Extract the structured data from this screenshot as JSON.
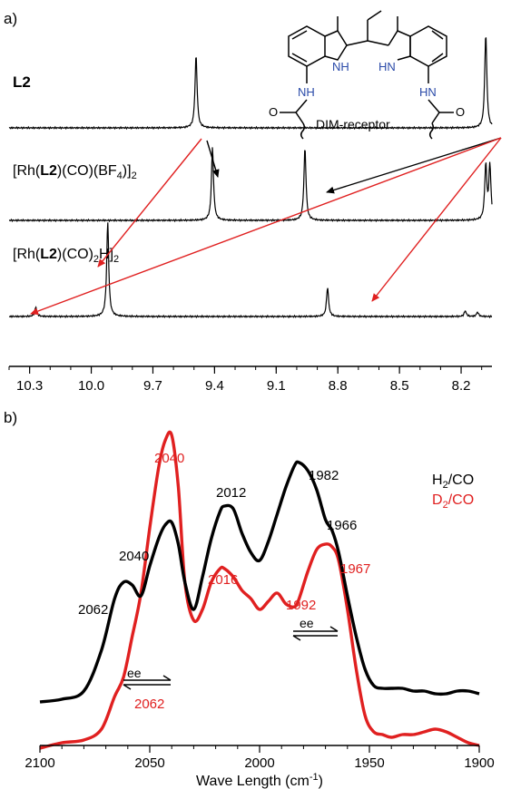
{
  "panel_a": {
    "panel_label": "a)",
    "traces": [
      {
        "label": "L2",
        "label_bold": true
      },
      {
        "label": "[Rh(L2)(CO)(BF4)]2",
        "label_bold": false
      },
      {
        "label": "[Rh(L2)(CO)2H]2",
        "label_bold": false
      }
    ],
    "structure": {
      "nh_left": "NH",
      "hn_right": "HN",
      "nh_amide_left": "NH",
      "hn_amide_right": "HN",
      "o_left": "O",
      "o_right": "O",
      "caption": "DIM-receptor"
    },
    "colors": {
      "spectrum": "#000000",
      "arrow_red": "#e02020",
      "arrow_black": "#000000",
      "nh_text": "#2a4aa8"
    }
  },
  "panel_b": {
    "panel_label": "b)",
    "legend": [
      {
        "label": "H2/CO",
        "color": "#000000"
      },
      {
        "label": "D2/CO",
        "color": "#e02020"
      }
    ],
    "annotations": [
      {
        "text": "2062",
        "series": "H2/CO"
      },
      {
        "text": "2040",
        "series": "H2/CO"
      },
      {
        "text": "2012",
        "series": "H2/CO"
      },
      {
        "text": "1982",
        "series": "H2/CO"
      },
      {
        "text": "1966",
        "series": "H2/CO"
      },
      {
        "text": "2040",
        "series": "D2/CO"
      },
      {
        "text": "2016",
        "series": "D2/CO"
      },
      {
        "text": "1992",
        "series": "D2/CO"
      },
      {
        "text": "1967",
        "series": "D2/CO"
      },
      {
        "text": "2062",
        "series": "D2/CO"
      }
    ],
    "ee_label": "ee"
  },
  "chart_data": [
    {
      "type": "line",
      "title": "",
      "xlabel": "",
      "ylabel": "",
      "x_reversed": true,
      "xlim": [
        10.4,
        8.05
      ],
      "x_ticks": [
        "10.3",
        "10.0",
        "9.7",
        "9.4",
        "9.1",
        "8.8",
        "8.5",
        "8.2"
      ],
      "series": [
        {
          "name": "L2",
          "peaks": [
            {
              "x": 9.49,
              "height": 1.0
            },
            {
              "x": 8.08,
              "height": 1.3
            }
          ]
        },
        {
          "name": "[Rh(L2)(CO)(BF4)]2",
          "peaks": [
            {
              "x": 9.41,
              "height": 1.0
            },
            {
              "x": 8.96,
              "height": 1.0
            },
            {
              "x": 8.08,
              "height": 0.75
            },
            {
              "x": 8.06,
              "height": 0.75
            }
          ]
        },
        {
          "name": "[Rh(L2)(CO)2H]2",
          "peaks": [
            {
              "x": 10.27,
              "height": 0.13
            },
            {
              "x": 9.92,
              "height": 1.3
            },
            {
              "x": 8.85,
              "height": 0.4
            },
            {
              "x": 8.18,
              "height": 0.08
            },
            {
              "x": 8.12,
              "height": 0.06
            }
          ]
        }
      ]
    },
    {
      "type": "line",
      "title": "",
      "xlabel": "Wave Length (cm-1)",
      "ylabel": "",
      "x_reversed": true,
      "xlim": [
        2100,
        1900
      ],
      "x_ticks": [
        "2100",
        "2050",
        "2000",
        "1950",
        "1900"
      ],
      "x": [
        2100,
        2090,
        2080,
        2072,
        2066,
        2062,
        2058,
        2054,
        2050,
        2046,
        2043,
        2040,
        2037,
        2034,
        2030,
        2026,
        2022,
        2018,
        2016,
        2012,
        2008,
        2004,
        2000,
        1996,
        1992,
        1988,
        1984,
        1982,
        1978,
        1974,
        1970,
        1967,
        1964,
        1960,
        1956,
        1952,
        1948,
        1944,
        1940,
        1935,
        1930,
        1925,
        1920,
        1915,
        1910,
        1905,
        1900
      ],
      "series": [
        {
          "name": "H2/CO",
          "values": [
            0.06,
            0.07,
            0.1,
            0.25,
            0.44,
            0.5,
            0.49,
            0.45,
            0.56,
            0.66,
            0.71,
            0.72,
            0.64,
            0.5,
            0.4,
            0.52,
            0.66,
            0.76,
            0.78,
            0.77,
            0.68,
            0.61,
            0.58,
            0.65,
            0.75,
            0.85,
            0.93,
            0.94,
            0.91,
            0.84,
            0.73,
            0.69,
            0.61,
            0.45,
            0.3,
            0.18,
            0.12,
            0.11,
            0.11,
            0.11,
            0.1,
            0.1,
            0.09,
            0.09,
            0.1,
            0.1,
            0.09
          ]
        },
        {
          "name": "D2/CO",
          "values": [
            -0.11,
            -0.09,
            -0.08,
            -0.04,
            0.08,
            0.15,
            0.3,
            0.46,
            0.7,
            0.92,
            1.02,
            1.04,
            0.85,
            0.5,
            0.36,
            0.4,
            0.5,
            0.55,
            0.55,
            0.52,
            0.47,
            0.44,
            0.4,
            0.43,
            0.46,
            0.42,
            0.41,
            0.44,
            0.54,
            0.62,
            0.64,
            0.63,
            0.58,
            0.4,
            0.18,
            0.01,
            -0.05,
            -0.06,
            -0.07,
            -0.06,
            -0.06,
            -0.05,
            -0.04,
            -0.05,
            -0.07,
            -0.09,
            -0.1
          ]
        }
      ]
    }
  ]
}
